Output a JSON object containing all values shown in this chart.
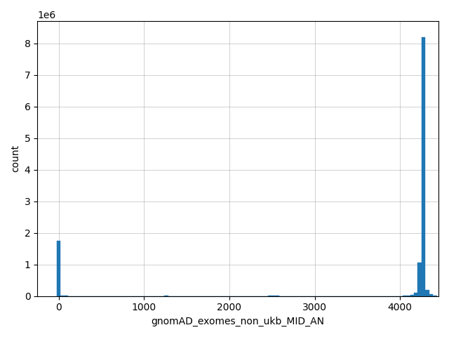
{
  "xlabel": "gnomAD_exomes_non_ukb_MID_AN",
  "ylabel": "count",
  "bar_color": "#1f77b4",
  "background_color": "#ffffff",
  "grid": true,
  "xlim": [
    -250,
    4450
  ],
  "ylim": [
    0,
    8700000
  ],
  "bin_width": 45,
  "bin_centers": [
    0,
    45,
    90,
    135,
    180,
    225,
    270,
    315,
    360,
    405,
    450,
    495,
    540,
    585,
    630,
    675,
    720,
    765,
    810,
    855,
    900,
    945,
    990,
    1035,
    1080,
    1125,
    1170,
    1215,
    1260,
    1305,
    1350,
    1395,
    1440,
    1485,
    1530,
    1575,
    1620,
    1665,
    1710,
    1755,
    1800,
    1845,
    1890,
    1935,
    1980,
    2025,
    2070,
    2115,
    2160,
    2205,
    2250,
    2295,
    2340,
    2385,
    2430,
    2475,
    2520,
    2565,
    2610,
    2655,
    2700,
    2745,
    2790,
    2835,
    2880,
    2925,
    2970,
    3015,
    3060,
    3105,
    3150,
    3195,
    3240,
    3285,
    3330,
    3375,
    3420,
    3465,
    3510,
    3555,
    3600,
    3645,
    3690,
    3735,
    3780,
    3825,
    3870,
    3915,
    3960,
    4005,
    4050,
    4095,
    4140,
    4185,
    4230,
    4275,
    4320,
    4365,
    4410
  ],
  "bin_counts": [
    1750000,
    3000,
    2000,
    1500,
    1000,
    800,
    800,
    800,
    800,
    800,
    800,
    800,
    800,
    800,
    800,
    800,
    800,
    800,
    800,
    800,
    800,
    800,
    800,
    800,
    800,
    800,
    800,
    800,
    9000,
    800,
    800,
    800,
    800,
    800,
    800,
    800,
    800,
    800,
    800,
    800,
    800,
    800,
    800,
    800,
    800,
    800,
    800,
    800,
    800,
    800,
    800,
    800,
    800,
    800,
    800,
    7000,
    5000,
    2000,
    1000,
    800,
    800,
    800,
    800,
    800,
    800,
    800,
    800,
    800,
    800,
    800,
    800,
    800,
    800,
    800,
    800,
    800,
    800,
    800,
    800,
    800,
    800,
    800,
    800,
    800,
    800,
    800,
    800,
    800,
    800,
    800,
    10000,
    20000,
    40000,
    110000,
    1050000,
    8200000,
    200000,
    50000,
    20000
  ]
}
